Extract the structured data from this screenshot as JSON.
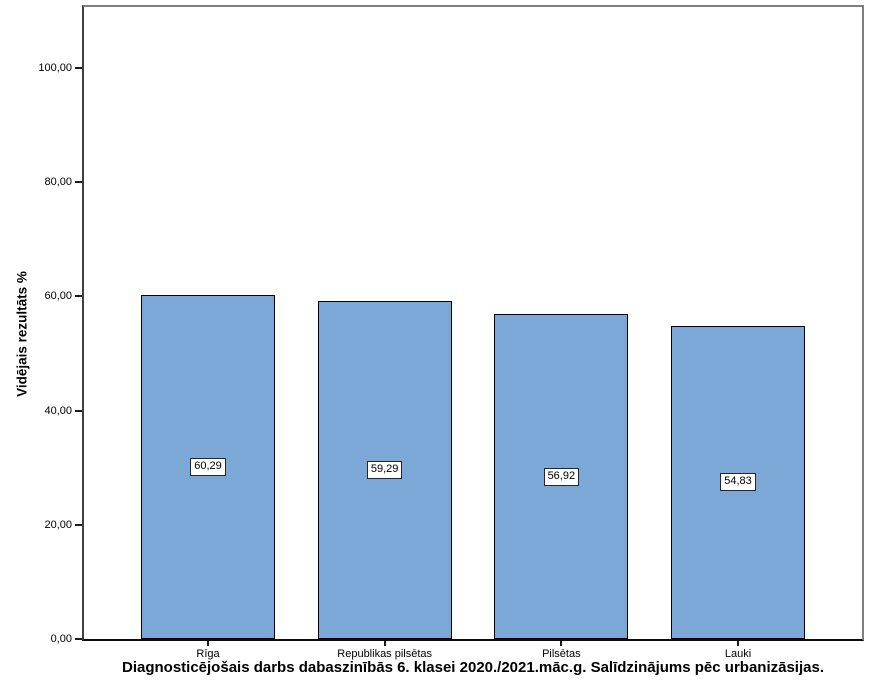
{
  "chart_data": {
    "type": "bar",
    "title": "Diagnosticējošais darbs dabaszinībās 6. klasei 2020./2021.māc.g. Salīdzinājums pēc urbanizāsijas.",
    "ylabel": "Vidējais rezultāts %",
    "xlabel": "",
    "categories": [
      "Rīga",
      "Republikas pilsētas",
      "Pilsētas",
      "Lauki"
    ],
    "values": [
      60.29,
      59.29,
      56.92,
      54.83
    ],
    "value_labels": [
      "60,29",
      "59,29",
      "56,92",
      "54,83"
    ],
    "y_ticks": [
      "0,00",
      "20,00",
      "40,00",
      "60,00",
      "80,00",
      "100,00"
    ],
    "y_tick_values": [
      0,
      20,
      40,
      60,
      80,
      100
    ],
    "ylim": [
      0,
      110.7
    ],
    "grid": false,
    "legend": "none",
    "bar_color": "#7CA8D8",
    "bar_border_color": "#000000",
    "label_box_bg": "#ffffff",
    "label_box_border": "#262626",
    "title_position": "bottom"
  }
}
